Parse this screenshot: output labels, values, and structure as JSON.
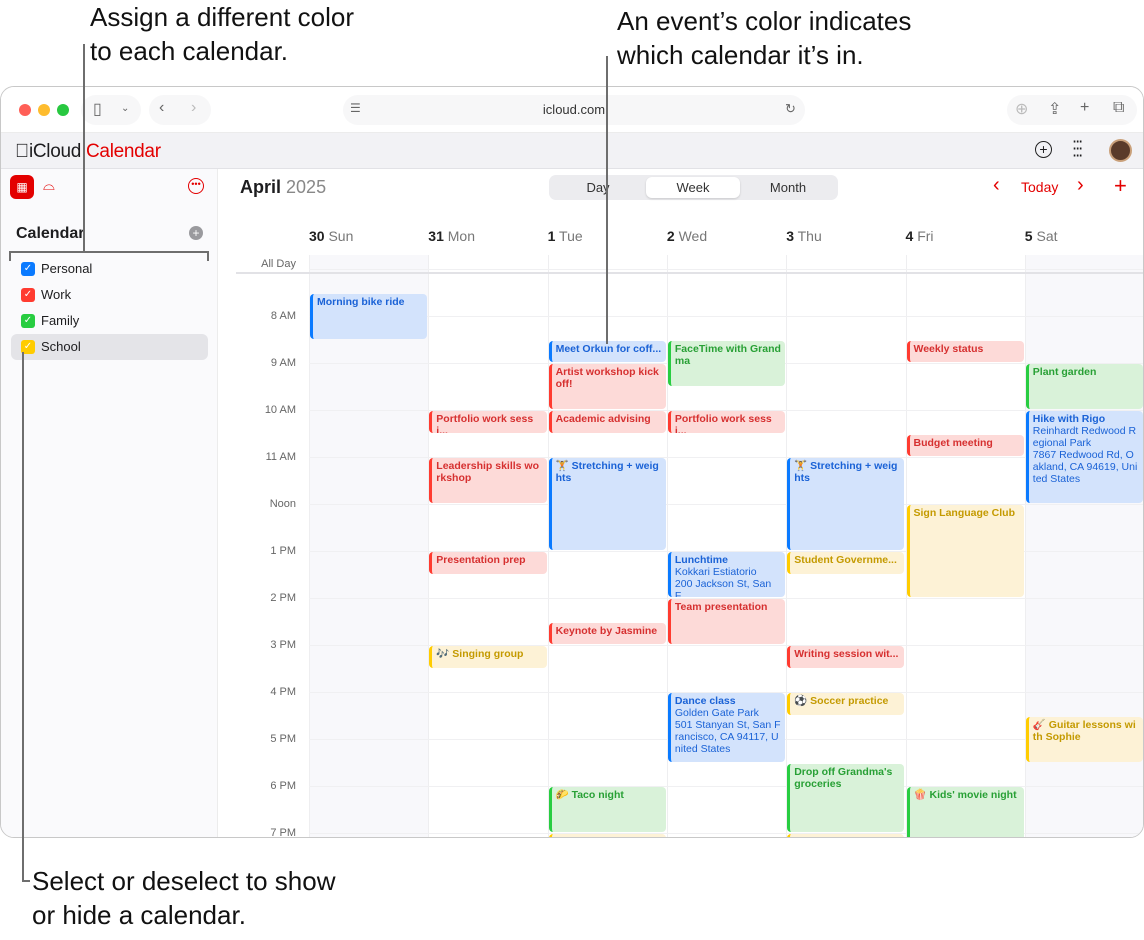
{
  "annotations": {
    "top_left": "Assign a different color\nto each calendar.",
    "top_right": "An event’s color indicates\nwhich calendar it’s in.",
    "bottom": "Select or deselect to show\nor hide a calendar."
  },
  "browser": {
    "url": "icloud.com"
  },
  "app": {
    "brand_icloud": "iCloud",
    "brand_calendar": "Calendar"
  },
  "sidebar": {
    "heading": "Calendar",
    "calendars": [
      {
        "label": "Personal",
        "color": "#0a7aff",
        "checked": true
      },
      {
        "label": "Work",
        "color": "#ff3b30",
        "checked": true
      },
      {
        "label": "Family",
        "color": "#28cd41",
        "checked": true
      },
      {
        "label": "School",
        "color": "#ffcc00",
        "checked": true,
        "selected": true
      }
    ]
  },
  "header": {
    "month": "April",
    "year": "2025",
    "views": [
      "Day",
      "Week",
      "Month"
    ],
    "active_view": "Week",
    "today": "Today"
  },
  "days": [
    {
      "num": "30",
      "name": "Sun"
    },
    {
      "num": "31",
      "name": "Mon"
    },
    {
      "num": "1",
      "name": "Tue"
    },
    {
      "num": "2",
      "name": "Wed"
    },
    {
      "num": "3",
      "name": "Thu"
    },
    {
      "num": "4",
      "name": "Fri"
    },
    {
      "num": "5",
      "name": "Sat"
    }
  ],
  "all_day_label": "All Day",
  "hours": [
    "8 AM",
    "9 AM",
    "10 AM",
    "11 AM",
    "Noon",
    "1 PM",
    "2 PM",
    "3 PM",
    "4 PM",
    "5 PM",
    "6 PM",
    "7 PM"
  ],
  "colors": {
    "Personal": {
      "bar": "#0a7aff",
      "bg": "#d3e3fc",
      "text": "#1a62d6"
    },
    "Work": {
      "bar": "#ff3b30",
      "bg": "#fddad8",
      "text": "#d63030"
    },
    "Family": {
      "bar": "#28cd41",
      "bg": "#d9f2d9",
      "text": "#28a035"
    },
    "School": {
      "bar": "#ffcc00",
      "bg": "#fdf2d6",
      "text": "#c49a00"
    }
  },
  "events": [
    {
      "day": 0,
      "start": 7.5,
      "end": 8.5,
      "cal": "Personal",
      "title": "Morning bike ride"
    },
    {
      "day": 1,
      "start": 10,
      "end": 10.5,
      "cal": "Work",
      "title": "Portfolio work sessi..."
    },
    {
      "day": 1,
      "start": 11,
      "end": 12,
      "cal": "Work",
      "title": "Leadership skills workshop"
    },
    {
      "day": 1,
      "start": 13,
      "end": 13.5,
      "cal": "Work",
      "title": "Presentation prep"
    },
    {
      "day": 1,
      "start": 15,
      "end": 15.5,
      "cal": "School",
      "title": "🎶 Singing group"
    },
    {
      "day": 2,
      "start": 8.5,
      "end": 9,
      "cal": "Personal",
      "title": "Meet Orkun for coff..."
    },
    {
      "day": 2,
      "start": 9,
      "end": 10,
      "cal": "Work",
      "title": "Artist workshop kickoff!"
    },
    {
      "day": 2,
      "start": 10,
      "end": 10.5,
      "cal": "Work",
      "title": "Academic advising"
    },
    {
      "day": 2,
      "start": 11,
      "end": 13,
      "cal": "Personal",
      "title": "🏋 Stretching + weights"
    },
    {
      "day": 2,
      "start": 14.5,
      "end": 15,
      "cal": "Work",
      "title": "Keynote by Jasmine"
    },
    {
      "day": 2,
      "start": 18,
      "end": 19,
      "cal": "Family",
      "title": "🌮 Taco night"
    },
    {
      "day": 2,
      "start": 19,
      "end": 20,
      "cal": "School",
      "title": ""
    },
    {
      "day": 3,
      "start": 8.5,
      "end": 9.5,
      "cal": "Family",
      "title": "FaceTime with Grandma"
    },
    {
      "day": 3,
      "start": 10,
      "end": 10.5,
      "cal": "Work",
      "title": "Portfolio work sessi..."
    },
    {
      "day": 3,
      "start": 13,
      "end": 14,
      "cal": "Personal",
      "title": "Lunchtime",
      "location": [
        "Kokkari Estiatorio",
        "200 Jackson St, San F..."
      ]
    },
    {
      "day": 3,
      "start": 14,
      "end": 15,
      "cal": "Work",
      "title": "Team presentation"
    },
    {
      "day": 3,
      "start": 16,
      "end": 17.5,
      "cal": "Personal",
      "title": "Dance class",
      "location": [
        "Golden Gate Park",
        "501 Stanyan St, San Francisco, CA  94117, United States"
      ]
    },
    {
      "day": 4,
      "start": 11,
      "end": 13,
      "cal": "Personal",
      "title": "🏋 Stretching + weights"
    },
    {
      "day": 4,
      "start": 13,
      "end": 13.5,
      "cal": "School",
      "title": "Student Governme..."
    },
    {
      "day": 4,
      "start": 15,
      "end": 15.5,
      "cal": "Work",
      "title": "Writing session wit..."
    },
    {
      "day": 4,
      "start": 16,
      "end": 16.5,
      "cal": "School",
      "title": "⚽ Soccer practice"
    },
    {
      "day": 4,
      "start": 17.5,
      "end": 19,
      "cal": "Family",
      "title": "Drop off Grandma's groceries"
    },
    {
      "day": 4,
      "start": 19,
      "end": 20,
      "cal": "School",
      "title": ""
    },
    {
      "day": 5,
      "start": 8.5,
      "end": 9,
      "cal": "Work",
      "title": "Weekly status"
    },
    {
      "day": 5,
      "start": 10.5,
      "end": 11,
      "cal": "Work",
      "title": "Budget meeting"
    },
    {
      "day": 5,
      "start": 12,
      "end": 14,
      "cal": "School",
      "title": "Sign Language Club"
    },
    {
      "day": 5,
      "start": 18,
      "end": 19.5,
      "cal": "Family",
      "title": "🍿 Kids' movie night"
    },
    {
      "day": 6,
      "start": 9,
      "end": 10,
      "cal": "Family",
      "title": "Plant garden"
    },
    {
      "day": 6,
      "start": 10,
      "end": 12,
      "cal": "Personal",
      "title": "Hike with Rigo",
      "location": [
        "Reinhardt Redwood Regional Park",
        "7867 Redwood Rd, Oakland, CA 94619, United States"
      ]
    },
    {
      "day": 6,
      "start": 16.5,
      "end": 17.5,
      "cal": "School",
      "title": "🎸 Guitar lessons with Sophie"
    }
  ]
}
